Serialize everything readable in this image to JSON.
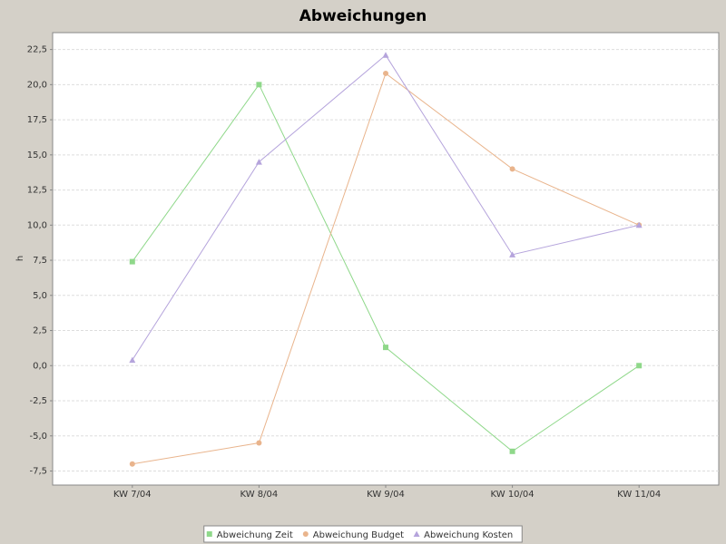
{
  "chart_data": {
    "type": "line",
    "title": "Abweichungen",
    "y_label": "h",
    "categories": [
      "KW 7/04",
      "KW 8/04",
      "KW 9/04",
      "KW 10/04",
      "KW 11/04"
    ],
    "series": [
      {
        "name": "Abweichung Zeit",
        "color": "#8fd88a",
        "marker": "square",
        "values": [
          7.4,
          20,
          1.3,
          -6.1,
          0
        ]
      },
      {
        "name": "Abweichung Budget",
        "color": "#e9b48c",
        "marker": "circle",
        "values": [
          -7,
          -5.5,
          20.8,
          14,
          10
        ]
      },
      {
        "name": "Abweichung Kosten",
        "color": "#b5a4dc",
        "marker": "triangle",
        "values": [
          0.4,
          14.5,
          22.1,
          7.9,
          10
        ]
      }
    ],
    "ylim": [
      -8.5,
      23.7
    ],
    "yticks": [
      {
        "value": -7.5,
        "label": "-7,5"
      },
      {
        "value": -5,
        "label": "-5,0"
      },
      {
        "value": -2.5,
        "label": "-2,5"
      },
      {
        "value": 0,
        "label": "0,0"
      },
      {
        "value": 2.5,
        "label": "2,5"
      },
      {
        "value": 5,
        "label": "5,0"
      },
      {
        "value": 7.5,
        "label": "7,5"
      },
      {
        "value": 10,
        "label": "10,0"
      },
      {
        "value": 12.5,
        "label": "12,5"
      },
      {
        "value": 15,
        "label": "15,0"
      },
      {
        "value": 17.5,
        "label": "17,5"
      },
      {
        "value": 20,
        "label": "20,0"
      },
      {
        "value": 22.5,
        "label": "22,5"
      }
    ],
    "grid": true,
    "legend": "bottom"
  }
}
